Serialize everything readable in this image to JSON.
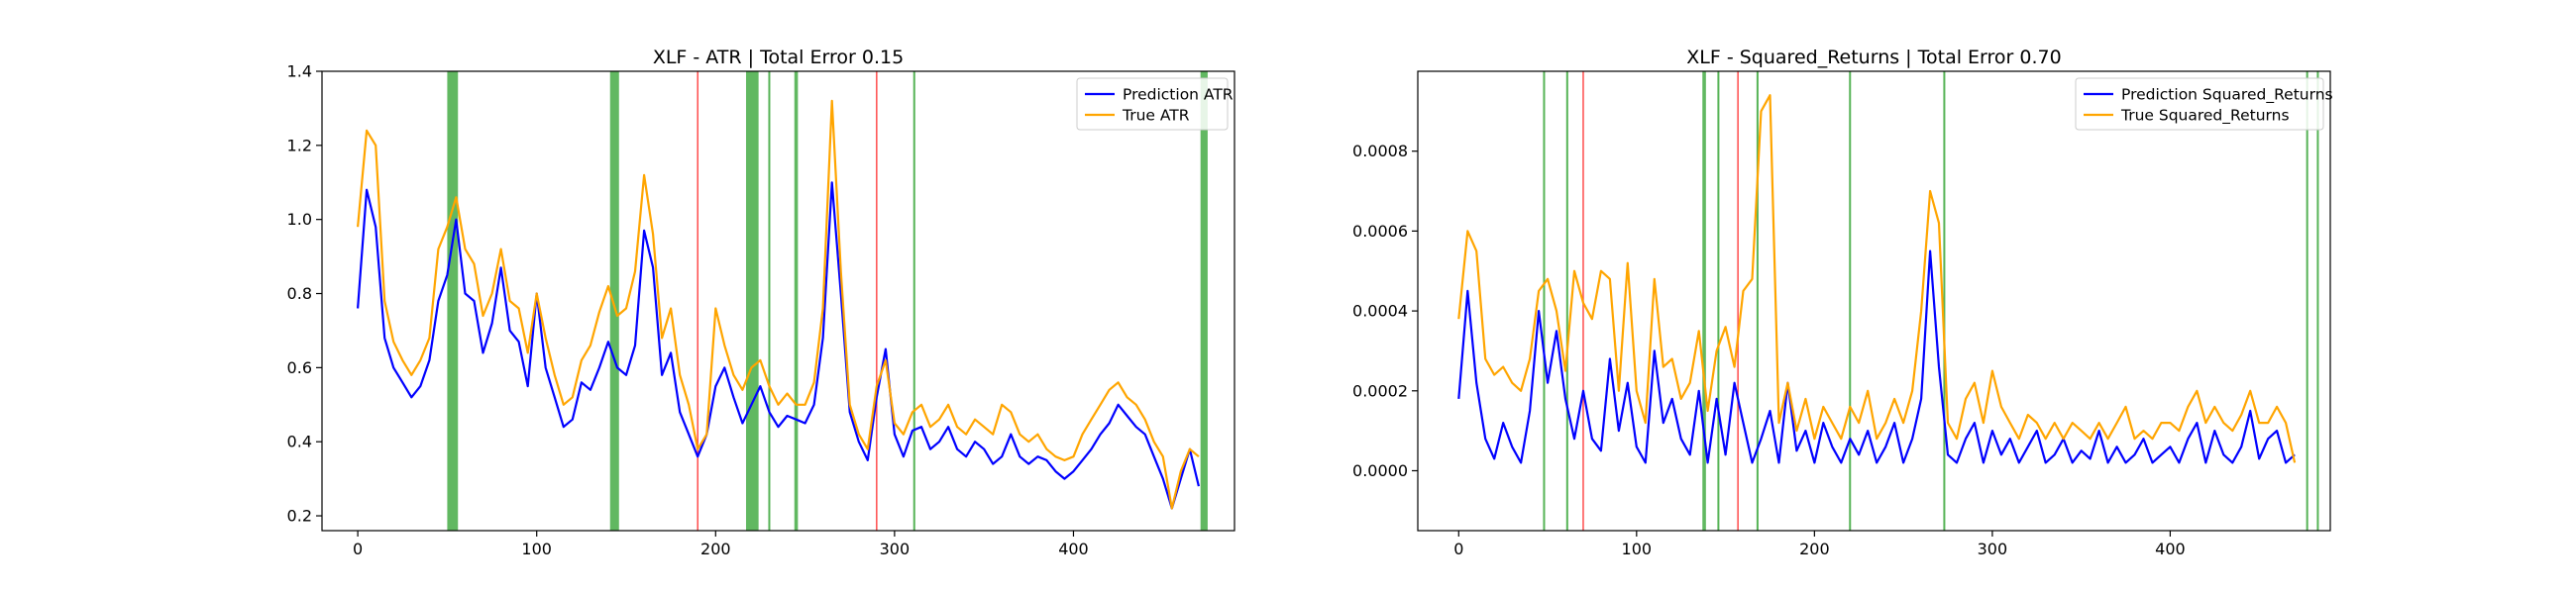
{
  "chart_data": [
    {
      "type": "line",
      "title": "XLF - ATR | Total Error 0.15",
      "xlabel": "",
      "ylabel": "",
      "xlim": [
        -20,
        490
      ],
      "ylim": [
        0.16,
        1.4
      ],
      "xticks": [
        0,
        100,
        200,
        300,
        400
      ],
      "yticks": [
        0.2,
        0.4,
        0.6,
        0.8,
        1.0,
        1.2,
        1.4
      ],
      "ytick_decimals": 1,
      "grid": false,
      "legend_position": "top-right",
      "colors": {
        "prediction": "#0000ff",
        "true": "#ffa500",
        "green_band": "#2ca02c",
        "red_line": "#ff0000"
      },
      "green_bands": [
        [
          50,
          56
        ],
        [
          141,
          146
        ],
        [
          217,
          224
        ],
        [
          244,
          246
        ],
        [
          471,
          475
        ]
      ],
      "green_lines": [
        230,
        311
      ],
      "red_lines": [
        190,
        290
      ],
      "series": [
        {
          "name": "Prediction ATR",
          "key": "prediction",
          "x": [
            0,
            5,
            10,
            15,
            20,
            25,
            30,
            35,
            40,
            45,
            50,
            55,
            60,
            65,
            70,
            75,
            80,
            85,
            90,
            95,
            100,
            105,
            110,
            115,
            120,
            125,
            130,
            135,
            140,
            145,
            150,
            155,
            160,
            165,
            170,
            175,
            180,
            185,
            190,
            195,
            200,
            205,
            210,
            215,
            220,
            225,
            230,
            235,
            240,
            245,
            250,
            255,
            260,
            265,
            270,
            275,
            280,
            285,
            290,
            295,
            300,
            305,
            310,
            315,
            320,
            325,
            330,
            335,
            340,
            345,
            350,
            355,
            360,
            365,
            370,
            375,
            380,
            385,
            390,
            395,
            400,
            405,
            410,
            415,
            420,
            425,
            430,
            435,
            440,
            445,
            450,
            455,
            460,
            465,
            470
          ],
          "values": [
            0.76,
            1.08,
            0.98,
            0.68,
            0.6,
            0.56,
            0.52,
            0.55,
            0.62,
            0.78,
            0.85,
            1.0,
            0.8,
            0.78,
            0.64,
            0.72,
            0.87,
            0.7,
            0.67,
            0.55,
            0.8,
            0.6,
            0.52,
            0.44,
            0.46,
            0.56,
            0.54,
            0.6,
            0.67,
            0.6,
            0.58,
            0.66,
            0.97,
            0.87,
            0.58,
            0.64,
            0.48,
            0.42,
            0.36,
            0.42,
            0.55,
            0.6,
            0.52,
            0.45,
            0.5,
            0.55,
            0.48,
            0.44,
            0.47,
            0.46,
            0.45,
            0.5,
            0.68,
            1.1,
            0.8,
            0.48,
            0.4,
            0.35,
            0.52,
            0.65,
            0.42,
            0.36,
            0.43,
            0.44,
            0.38,
            0.4,
            0.44,
            0.38,
            0.36,
            0.4,
            0.38,
            0.34,
            0.36,
            0.42,
            0.36,
            0.34,
            0.36,
            0.35,
            0.32,
            0.3,
            0.32,
            0.35,
            0.38,
            0.42,
            0.45,
            0.5,
            0.47,
            0.44,
            0.42,
            0.36,
            0.3,
            0.22,
            0.3,
            0.38,
            0.28
          ]
        },
        {
          "name": "True ATR",
          "key": "true",
          "x": [
            0,
            5,
            10,
            15,
            20,
            25,
            30,
            35,
            40,
            45,
            50,
            55,
            60,
            65,
            70,
            75,
            80,
            85,
            90,
            95,
            100,
            105,
            110,
            115,
            120,
            125,
            130,
            135,
            140,
            145,
            150,
            155,
            160,
            165,
            170,
            175,
            180,
            185,
            190,
            195,
            200,
            205,
            210,
            215,
            220,
            225,
            230,
            235,
            240,
            245,
            250,
            255,
            260,
            265,
            270,
            275,
            280,
            285,
            290,
            295,
            300,
            305,
            310,
            315,
            320,
            325,
            330,
            335,
            340,
            345,
            350,
            355,
            360,
            365,
            370,
            375,
            380,
            385,
            390,
            395,
            400,
            405,
            410,
            415,
            420,
            425,
            430,
            435,
            440,
            445,
            450,
            455,
            460,
            465,
            470
          ],
          "values": [
            0.98,
            1.24,
            1.2,
            0.78,
            0.67,
            0.62,
            0.58,
            0.62,
            0.68,
            0.92,
            0.98,
            1.06,
            0.92,
            0.88,
            0.74,
            0.8,
            0.92,
            0.78,
            0.76,
            0.64,
            0.8,
            0.68,
            0.58,
            0.5,
            0.52,
            0.62,
            0.66,
            0.75,
            0.82,
            0.74,
            0.76,
            0.86,
            1.12,
            0.96,
            0.68,
            0.76,
            0.58,
            0.5,
            0.38,
            0.42,
            0.76,
            0.66,
            0.58,
            0.54,
            0.6,
            0.62,
            0.55,
            0.5,
            0.53,
            0.5,
            0.5,
            0.56,
            0.76,
            1.32,
            0.86,
            0.5,
            0.42,
            0.38,
            0.55,
            0.62,
            0.45,
            0.42,
            0.48,
            0.5,
            0.44,
            0.46,
            0.5,
            0.44,
            0.42,
            0.46,
            0.44,
            0.42,
            0.5,
            0.48,
            0.42,
            0.4,
            0.42,
            0.38,
            0.36,
            0.35,
            0.36,
            0.42,
            0.46,
            0.5,
            0.54,
            0.56,
            0.52,
            0.5,
            0.46,
            0.4,
            0.36,
            0.22,
            0.32,
            0.38,
            0.36
          ]
        }
      ]
    },
    {
      "type": "line",
      "title": "XLF - Squared_Returns | Total Error 0.70",
      "xlabel": "",
      "ylabel": "",
      "xlim": [
        -23,
        490
      ],
      "ylim": [
        -0.00015,
        0.001
      ],
      "xticks": [
        0,
        100,
        200,
        300,
        400
      ],
      "yticks": [
        0.0,
        0.0002,
        0.0004,
        0.0006,
        0.0008
      ],
      "ytick_decimals": 4,
      "grid": false,
      "legend_position": "top-right",
      "colors": {
        "prediction": "#0000ff",
        "true": "#ffa500",
        "green_band": "#2ca02c",
        "red_line": "#ff0000"
      },
      "green_bands": [
        [
          137,
          139
        ]
      ],
      "green_lines": [
        48,
        61,
        146,
        168,
        220,
        273,
        477,
        483
      ],
      "red_lines": [
        70,
        157
      ],
      "series": [
        {
          "name": "Prediction Squared_Returns",
          "key": "prediction",
          "x": [
            0,
            5,
            10,
            15,
            20,
            25,
            30,
            35,
            40,
            45,
            50,
            55,
            60,
            65,
            70,
            75,
            80,
            85,
            90,
            95,
            100,
            105,
            110,
            115,
            120,
            125,
            130,
            135,
            140,
            145,
            150,
            155,
            160,
            165,
            170,
            175,
            180,
            185,
            190,
            195,
            200,
            205,
            210,
            215,
            220,
            225,
            230,
            235,
            240,
            245,
            250,
            255,
            260,
            265,
            270,
            275,
            280,
            285,
            290,
            295,
            300,
            305,
            310,
            315,
            320,
            325,
            330,
            335,
            340,
            345,
            350,
            355,
            360,
            365,
            370,
            375,
            380,
            385,
            390,
            395,
            400,
            405,
            410,
            415,
            420,
            425,
            430,
            435,
            440,
            445,
            450,
            455,
            460,
            465,
            470
          ],
          "values": [
            0.00018,
            0.00045,
            0.00022,
            8e-05,
            3e-05,
            0.00012,
            6e-05,
            2e-05,
            0.00015,
            0.0004,
            0.00022,
            0.00035,
            0.00018,
            8e-05,
            0.0002,
            8e-05,
            5e-05,
            0.00028,
            0.0001,
            0.00022,
            6e-05,
            2e-05,
            0.0003,
            0.00012,
            0.00018,
            8e-05,
            4e-05,
            0.0002,
            2e-05,
            0.00018,
            4e-05,
            0.00022,
            0.00012,
            2e-05,
            8e-05,
            0.00015,
            2e-05,
            0.00022,
            5e-05,
            0.0001,
            2e-05,
            0.00012,
            6e-05,
            2e-05,
            8e-05,
            4e-05,
            0.0001,
            2e-05,
            6e-05,
            0.00012,
            2e-05,
            8e-05,
            0.00018,
            0.00055,
            0.00026,
            4e-05,
            2e-05,
            8e-05,
            0.00012,
            2e-05,
            0.0001,
            4e-05,
            8e-05,
            2e-05,
            6e-05,
            0.0001,
            2e-05,
            4e-05,
            8e-05,
            2e-05,
            5e-05,
            3e-05,
            0.0001,
            2e-05,
            6e-05,
            2e-05,
            4e-05,
            8e-05,
            2e-05,
            4e-05,
            6e-05,
            2e-05,
            8e-05,
            0.00012,
            2e-05,
            0.0001,
            4e-05,
            2e-05,
            6e-05,
            0.00015,
            3e-05,
            8e-05,
            0.0001,
            2e-05,
            4e-05
          ]
        },
        {
          "name": "True Squared_Returns",
          "key": "true",
          "x": [
            0,
            5,
            10,
            15,
            20,
            25,
            30,
            35,
            40,
            45,
            50,
            55,
            60,
            65,
            70,
            75,
            80,
            85,
            90,
            95,
            100,
            105,
            110,
            115,
            120,
            125,
            130,
            135,
            140,
            145,
            150,
            155,
            160,
            165,
            170,
            175,
            180,
            185,
            190,
            195,
            200,
            205,
            210,
            215,
            220,
            225,
            230,
            235,
            240,
            245,
            250,
            255,
            260,
            265,
            270,
            275,
            280,
            285,
            290,
            295,
            300,
            305,
            310,
            315,
            320,
            325,
            330,
            335,
            340,
            345,
            350,
            355,
            360,
            365,
            370,
            375,
            380,
            385,
            390,
            395,
            400,
            405,
            410,
            415,
            420,
            425,
            430,
            435,
            440,
            445,
            450,
            455,
            460,
            465,
            470
          ],
          "values": [
            0.00038,
            0.0006,
            0.00055,
            0.00028,
            0.00024,
            0.00026,
            0.00022,
            0.0002,
            0.00028,
            0.00045,
            0.00048,
            0.0004,
            0.00025,
            0.0005,
            0.00042,
            0.00038,
            0.0005,
            0.00048,
            0.0002,
            0.00052,
            0.0002,
            0.00012,
            0.00048,
            0.00026,
            0.00028,
            0.00018,
            0.00022,
            0.00035,
            0.00015,
            0.0003,
            0.00036,
            0.00026,
            0.00045,
            0.00048,
            0.0009,
            0.00094,
            0.00012,
            0.00022,
            0.0001,
            0.00018,
            8e-05,
            0.00016,
            0.00012,
            8e-05,
            0.00016,
            0.00012,
            0.0002,
            8e-05,
            0.00012,
            0.00018,
            0.00012,
            0.0002,
            0.0004,
            0.0007,
            0.00062,
            0.00012,
            8e-05,
            0.00018,
            0.00022,
            0.00012,
            0.00025,
            0.00016,
            0.00012,
            8e-05,
            0.00014,
            0.00012,
            8e-05,
            0.00012,
            8e-05,
            0.00012,
            0.0001,
            8e-05,
            0.00012,
            8e-05,
            0.00012,
            0.00016,
            8e-05,
            0.0001,
            8e-05,
            0.00012,
            0.00012,
            0.0001,
            0.00016,
            0.0002,
            0.00012,
            0.00016,
            0.00012,
            0.0001,
            0.00014,
            0.0002,
            0.00012,
            0.00012,
            0.00016,
            0.00012,
            2e-05
          ]
        }
      ]
    }
  ]
}
